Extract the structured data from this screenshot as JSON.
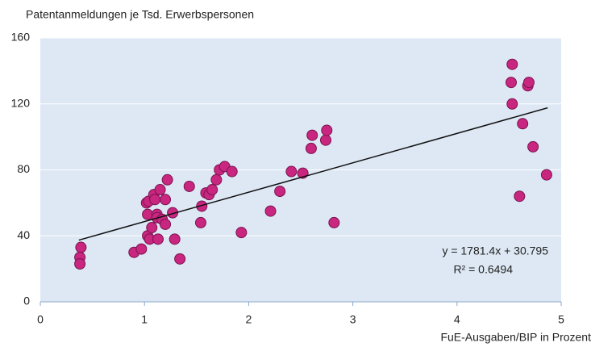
{
  "chart_data": {
    "type": "scatter",
    "y_label": "Patentanmeldungen je Tsd. Erwerbspersonen",
    "x_label": "FuE-Ausgaben/BIP in Prozent",
    "equation": "y = 1781.4x + 30.795",
    "r_squared": "R² = 0.6494",
    "xlim": [
      0,
      5
    ],
    "xticks": [
      0,
      1,
      2,
      3,
      4,
      5
    ],
    "ylim": [
      0,
      160
    ],
    "yticks": [
      0,
      40,
      80,
      120,
      160
    ],
    "grid": true,
    "color": "#c8267f",
    "x": [
      0.39,
      0.38,
      0.38,
      0.9,
      0.97,
      1.02,
      1.04,
      1.03,
      1.03,
      1.05,
      1.07,
      1.09,
      1.1,
      1.12,
      1.12,
      1.13,
      1.15,
      1.17,
      1.2,
      1.2,
      1.22,
      1.27,
      1.29,
      1.34,
      1.43,
      1.54,
      1.55,
      1.59,
      1.62,
      1.65,
      1.69,
      1.72,
      1.77,
      1.84,
      1.93,
      2.21,
      2.3,
      2.41,
      2.52,
      2.6,
      2.61,
      2.74,
      2.75,
      2.82,
      4.53,
      4.52,
      4.53,
      4.6,
      4.63,
      4.68,
      4.69,
      4.73,
      4.86
    ],
    "values": [
      33,
      27,
      23,
      30,
      32,
      60,
      61,
      53,
      40,
      38,
      45,
      65,
      62,
      53,
      51,
      38,
      68,
      50,
      62,
      47,
      74,
      54,
      38,
      26,
      70,
      48,
      58,
      66,
      65,
      68,
      74,
      80,
      82,
      79,
      42,
      55,
      67,
      79,
      78,
      93,
      101,
      98,
      104,
      48,
      144,
      133,
      120,
      64,
      108,
      131,
      133,
      94,
      77
    ],
    "trendline": {
      "x": [
        0.37,
        4.87
      ],
      "y": [
        37.4,
        117.6
      ],
      "color": "#111111"
    }
  }
}
